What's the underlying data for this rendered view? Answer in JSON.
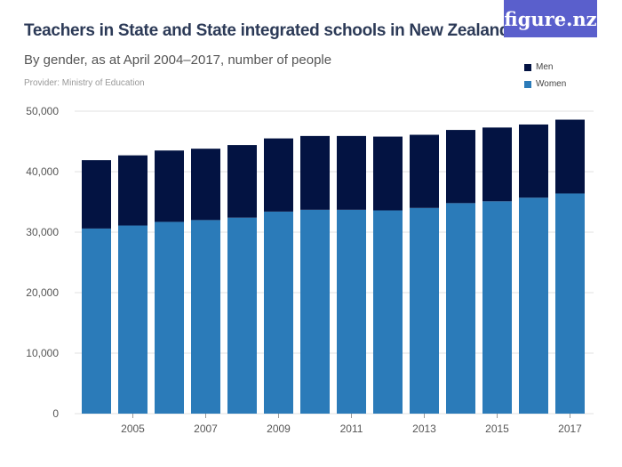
{
  "logo": "figure.nz",
  "chart_data": {
    "type": "bar",
    "stacked": true,
    "title": "Teachers in State and State integrated schools in New Zealand",
    "subtitle": "By gender, as at April 2004–2017, number of people",
    "provider": "Provider: Ministry of Education",
    "categories": [
      "2004",
      "2005",
      "2006",
      "2007",
      "2008",
      "2009",
      "2010",
      "2011",
      "2012",
      "2013",
      "2014",
      "2015",
      "2016",
      "2017"
    ],
    "x_tick_labels": [
      "2005",
      "2007",
      "2009",
      "2011",
      "2013",
      "2015",
      "2017"
    ],
    "y_tick_labels": [
      "0",
      "10,000",
      "20,000",
      "30,000",
      "40,000",
      "50,000"
    ],
    "ylim": [
      0,
      50000
    ],
    "grid": true,
    "legend_position": "top-right",
    "series": [
      {
        "name": "Women",
        "color": "#2b7bb9",
        "values": [
          30600,
          31100,
          31700,
          32000,
          32400,
          33400,
          33700,
          33700,
          33600,
          34000,
          34800,
          35100,
          35700,
          36400
        ]
      },
      {
        "name": "Men",
        "color": "#031342",
        "values": [
          11300,
          11600,
          11800,
          11800,
          12000,
          12100,
          12200,
          12200,
          12200,
          12100,
          12100,
          12200,
          12100,
          12200
        ]
      }
    ]
  }
}
